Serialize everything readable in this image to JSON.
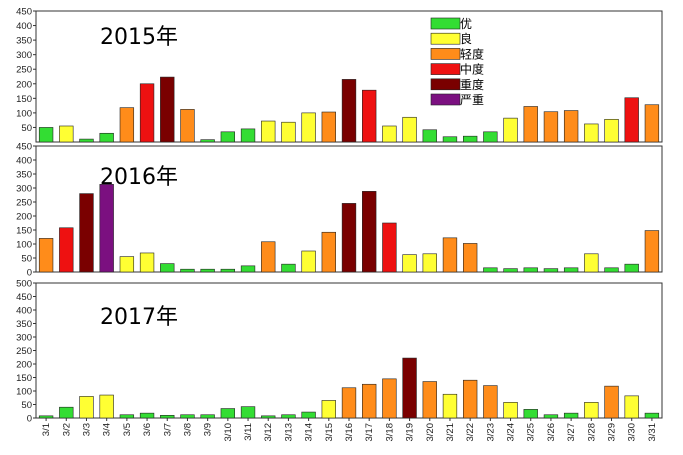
{
  "chart_data": {
    "type": "bar",
    "categories": [
      "3/1",
      "3/2",
      "3/3",
      "3/4",
      "3/5",
      "3/6",
      "3/7",
      "3/8",
      "3/9",
      "3/10",
      "3/11",
      "3/12",
      "3/13",
      "3/14",
      "3/15",
      "3/16",
      "3/17",
      "3/18",
      "3/19",
      "3/20",
      "3/21",
      "3/22",
      "3/23",
      "3/24",
      "3/25",
      "3/26",
      "3/27",
      "3/28",
      "3/29",
      "3/30",
      "3/31"
    ],
    "legend": {
      "placement": "top-center",
      "entries": [
        {
          "label": "优",
          "color": "#33dd33"
        },
        {
          "label": "良",
          "color": "#ffff33"
        },
        {
          "label": "轻度",
          "color": "#ff8c1a"
        },
        {
          "label": "中度",
          "color": "#ee1111"
        },
        {
          "label": "重度",
          "color": "#7a0000"
        },
        {
          "label": "严重",
          "color": "#7b1080"
        }
      ]
    },
    "categories_thresholds": [
      50,
      100,
      150,
      200,
      300
    ],
    "panels": [
      {
        "title": "2015年",
        "ylim": [
          0,
          450
        ],
        "yticks": [
          50,
          100,
          150,
          200,
          250,
          300,
          350,
          400,
          450
        ],
        "values": [
          50,
          55,
          10,
          30,
          118,
          200,
          223,
          112,
          8,
          35,
          45,
          72,
          68,
          100,
          103,
          215,
          178,
          55,
          85,
          42,
          18,
          20,
          35,
          82,
          122,
          104,
          108,
          62,
          78,
          152,
          128
        ]
      },
      {
        "title": "2016年",
        "ylim": [
          0,
          450
        ],
        "yticks": [
          0,
          50,
          100,
          150,
          200,
          250,
          300,
          350,
          400,
          450
        ],
        "values": [
          120,
          158,
          280,
          313,
          55,
          68,
          30,
          10,
          10,
          10,
          22,
          108,
          28,
          75,
          142,
          245,
          288,
          175,
          62,
          65,
          122,
          102,
          15,
          12,
          15,
          12,
          15,
          65,
          15,
          28,
          148
        ]
      },
      {
        "title": "2017年",
        "ylim": [
          0,
          500
        ],
        "yticks": [
          0,
          50,
          100,
          150,
          200,
          250,
          300,
          350,
          400,
          450,
          500
        ],
        "values": [
          8,
          40,
          80,
          85,
          12,
          18,
          10,
          12,
          12,
          35,
          42,
          8,
          12,
          22,
          65,
          112,
          125,
          145,
          222,
          135,
          88,
          140,
          120,
          58,
          32,
          12,
          18,
          58,
          118,
          82,
          18
        ]
      }
    ]
  }
}
